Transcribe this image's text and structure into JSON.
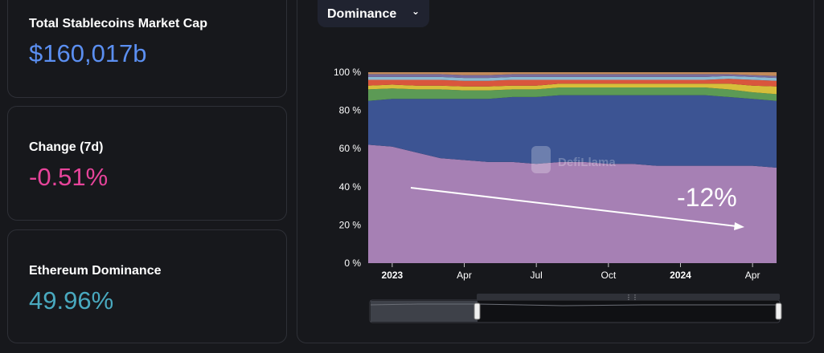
{
  "stats": [
    {
      "label": "Total Stablecoins Market Cap",
      "value": "$160,017b",
      "color": "#5b8ff1"
    },
    {
      "label": "Change (7d)",
      "value": "-0.51%",
      "color": "#e6449a"
    },
    {
      "label": "Ethereum Dominance",
      "value": "49.96%",
      "color": "#49a9bf"
    }
  ],
  "dropdown": {
    "label": "Dominance",
    "icon": "chevron-down-icon"
  },
  "watermark": "DefiLlama",
  "annotation": {
    "text": "-12%"
  },
  "chart_data": {
    "type": "area",
    "stacked": true,
    "percent": true,
    "ylim": [
      0,
      100
    ],
    "y_ticks": [
      "0 %",
      "20 %",
      "40 %",
      "60 %",
      "80 %",
      "100 %"
    ],
    "x_ticks": [
      "2023",
      "Apr",
      "Jul",
      "Oct",
      "2024",
      "Apr"
    ],
    "x": [
      "2022-12",
      "2023-01",
      "2023-02",
      "2023-03",
      "2023-04",
      "2023-05",
      "2023-06",
      "2023-07",
      "2023-08",
      "2023-09",
      "2023-10",
      "2023-11",
      "2023-12",
      "2024-01",
      "2024-02",
      "2024-03",
      "2024-04",
      "2024-05"
    ],
    "series": [
      {
        "color": "#a680b4",
        "values": [
          62,
          61,
          58,
          55,
          54,
          53,
          53,
          52,
          53,
          53,
          52,
          52,
          51,
          51,
          51,
          51,
          51,
          50
        ]
      },
      {
        "color": "#3c5493",
        "values": [
          23,
          25,
          28,
          31,
          32,
          33,
          34,
          35,
          35,
          35,
          36,
          36,
          37,
          37,
          37,
          36,
          35,
          35
        ]
      },
      {
        "color": "#5c9a55",
        "values": [
          6,
          5.5,
          5,
          5,
          4.5,
          4.5,
          4,
          4,
          4,
          4,
          4,
          4,
          4,
          4,
          4,
          4,
          3.5,
          3.5
        ]
      },
      {
        "color": "#d6be3a",
        "values": [
          2,
          2,
          2,
          2,
          2,
          2,
          2,
          2,
          2,
          2,
          2,
          2,
          2,
          2,
          2,
          3,
          3.5,
          4
        ]
      },
      {
        "color": "#d9563d",
        "values": [
          3,
          2.5,
          3,
          3,
          3,
          3,
          3,
          3,
          2,
          2,
          2,
          2,
          2,
          2,
          2,
          2.5,
          3,
          3
        ]
      },
      {
        "color": "#8bb9d1",
        "values": [
          1.5,
          1.5,
          1.5,
          1.5,
          1.5,
          1.5,
          1.5,
          1.5,
          1.5,
          1.5,
          1.5,
          1.5,
          1.5,
          1.5,
          1.5,
          1.5,
          1.5,
          1.5
        ]
      },
      {
        "color": "#7a6c9e",
        "values": [
          1.5,
          1.5,
          1.5,
          1.5,
          1.5,
          1.5,
          1.5,
          1.5,
          1.5,
          1.5,
          1.5,
          1.5,
          1.5,
          1.5,
          1.5,
          1,
          1,
          1
        ]
      },
      {
        "color": "#c28a5a",
        "values": [
          1,
          1,
          1,
          1,
          1.5,
          1.5,
          1,
          1,
          1,
          1,
          1,
          1,
          1,
          1,
          1,
          1,
          1.5,
          2
        ]
      }
    ]
  }
}
